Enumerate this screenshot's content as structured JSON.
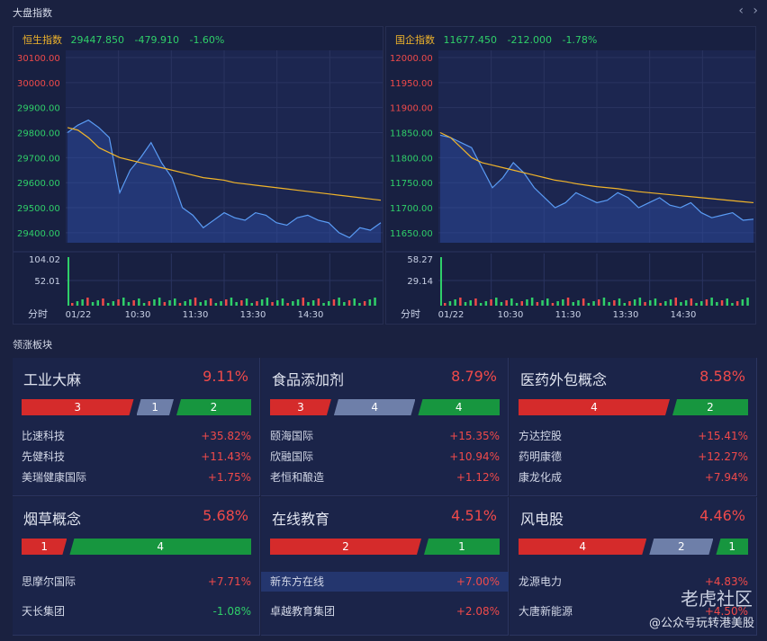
{
  "index_section": {
    "title": "大盘指数"
  },
  "nav": {
    "prev": "‹",
    "next": "›"
  },
  "charts": [
    {
      "name": "恒生指数",
      "price": "29447.850",
      "change": "-479.910",
      "pct": "-1.60%",
      "y_ticks": [
        "30100.00",
        "30000.00",
        "29900.00",
        "29800.00",
        "29700.00",
        "29600.00",
        "29500.00",
        "29400.00"
      ],
      "y_tick_colors": [
        "#f04a4a",
        "#f04a4a",
        "#2fcf69",
        "#2fcf69",
        "#2fcf69",
        "#2fcf69",
        "#2fcf69",
        "#2fcf69"
      ],
      "vol_ticks": [
        "104.02",
        "52.01"
      ],
      "x_label": "分时",
      "x_ticks": [
        "01/22",
        "10:30",
        "11:30",
        "13:30",
        "14:30"
      ],
      "ylim": [
        29360,
        30100
      ],
      "price_series": [
        29800,
        29830,
        29850,
        29820,
        29780,
        29560,
        29650,
        29700,
        29760,
        29680,
        29620,
        29500,
        29470,
        29420,
        29450,
        29480,
        29460,
        29450,
        29480,
        29470,
        29440,
        29430,
        29460,
        29470,
        29450,
        29440,
        29400,
        29380,
        29420,
        29410,
        29440
      ],
      "avg_series": [
        29820,
        29810,
        29780,
        29740,
        29720,
        29700,
        29690,
        29680,
        29670,
        29660,
        29650,
        29640,
        29630,
        29620,
        29615,
        29610,
        29600,
        29595,
        29590,
        29585,
        29580,
        29575,
        29570,
        29565,
        29560,
        29555,
        29550,
        29545,
        29540,
        29535,
        29530
      ]
    },
    {
      "name": "国企指数",
      "price": "11677.450",
      "change": "-212.000",
      "pct": "-1.78%",
      "y_ticks": [
        "12000.00",
        "11950.00",
        "11900.00",
        "11850.00",
        "11800.00",
        "11750.00",
        "11700.00",
        "11650.00"
      ],
      "y_tick_colors": [
        "#f04a4a",
        "#f04a4a",
        "#f04a4a",
        "#2fcf69",
        "#2fcf69",
        "#2fcf69",
        "#2fcf69",
        "#2fcf69"
      ],
      "vol_ticks": [
        "58.27",
        "29.14"
      ],
      "x_label": "分时",
      "x_ticks": [
        "01/22",
        "10:30",
        "11:30",
        "13:30",
        "14:30"
      ],
      "ylim": [
        11630,
        12000
      ],
      "price_series": [
        11845,
        11840,
        11830,
        11820,
        11780,
        11740,
        11760,
        11790,
        11770,
        11740,
        11720,
        11700,
        11710,
        11730,
        11720,
        11710,
        11715,
        11730,
        11720,
        11700,
        11710,
        11720,
        11705,
        11700,
        11710,
        11690,
        11680,
        11685,
        11690,
        11675,
        11677
      ],
      "avg_series": [
        11850,
        11840,
        11820,
        11800,
        11790,
        11785,
        11780,
        11775,
        11770,
        11765,
        11760,
        11755,
        11752,
        11748,
        11745,
        11742,
        11740,
        11738,
        11735,
        11732,
        11730,
        11728,
        11726,
        11724,
        11722,
        11720,
        11718,
        11716,
        11714,
        11712,
        11710
      ]
    }
  ],
  "sectors_section": {
    "title": "领涨板块"
  },
  "sectors": [
    {
      "name": "工业大麻",
      "pct": "9.11%",
      "up": 3,
      "flat": 1,
      "down": 2,
      "stocks": [
        {
          "name": "比速科技",
          "pct": "+35.82%"
        },
        {
          "name": "先健科技",
          "pct": "+11.43%"
        },
        {
          "name": "美瑞健康国际",
          "pct": "+1.75%"
        }
      ]
    },
    {
      "name": "食品添加剂",
      "pct": "8.79%",
      "up": 3,
      "flat": 4,
      "down": 4,
      "stocks": [
        {
          "name": "颐海国际",
          "pct": "+15.35%"
        },
        {
          "name": "欣融国际",
          "pct": "+10.94%"
        },
        {
          "name": "老恒和酿造",
          "pct": "+1.12%"
        }
      ]
    },
    {
      "name": "医药外包概念",
      "pct": "8.58%",
      "up": 4,
      "flat": 0,
      "down": 2,
      "stocks": [
        {
          "name": "方达控股",
          "pct": "+15.41%"
        },
        {
          "name": "药明康德",
          "pct": "+12.27%"
        },
        {
          "name": "康龙化成",
          "pct": "+7.94%"
        }
      ]
    },
    {
      "name": "烟草概念",
      "pct": "5.68%",
      "up": 1,
      "flat": 0,
      "down": 4,
      "stocks": [
        {
          "name": "思摩尔国际",
          "pct": "+7.71%"
        },
        {
          "name": "天长集团",
          "pct": "-1.08%"
        }
      ]
    },
    {
      "name": "在线教育",
      "pct": "4.51%",
      "up": 2,
      "flat": 0,
      "down": 1,
      "stocks": [
        {
          "name": "新东方在线",
          "pct": "+7.00%",
          "highlight": true
        },
        {
          "name": "卓越教育集团",
          "pct": "+2.08%"
        }
      ]
    },
    {
      "name": "风电股",
      "pct": "4.46%",
      "up": 4,
      "flat": 2,
      "down": 1,
      "stocks": [
        {
          "name": "龙源电力",
          "pct": "+4.83%"
        },
        {
          "name": "大唐新能源",
          "pct": "+4.50%"
        }
      ]
    }
  ],
  "watermark": {
    "brand": "老虎社区",
    "account": "@公众号玩转港美股"
  }
}
